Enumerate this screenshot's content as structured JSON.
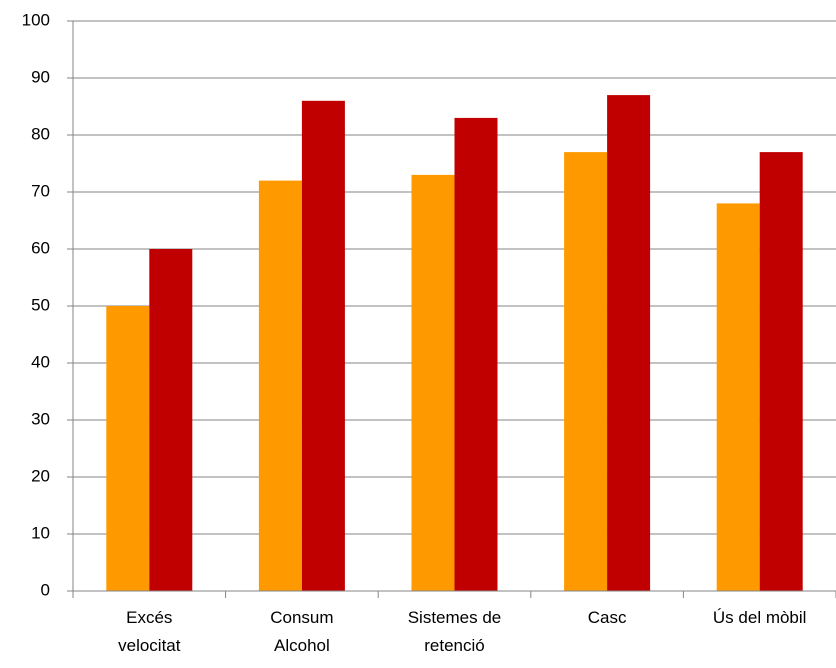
{
  "chart_data": {
    "type": "bar",
    "categories": [
      "Excés\nvelocitat",
      "Consum\nAlcohol",
      "Sistemes de\nretenció",
      "Casc",
      "Ús del mòbil"
    ],
    "series": [
      {
        "color": "#ff9900",
        "values": [
          50,
          72,
          73,
          77,
          68
        ]
      },
      {
        "color": "#c00000",
        "values": [
          60,
          86,
          83,
          87,
          77
        ]
      }
    ],
    "ylim": [
      0,
      100
    ],
    "yticks": [
      0,
      10,
      20,
      30,
      40,
      50,
      60,
      70,
      80,
      90,
      100
    ],
    "grid": true
  }
}
